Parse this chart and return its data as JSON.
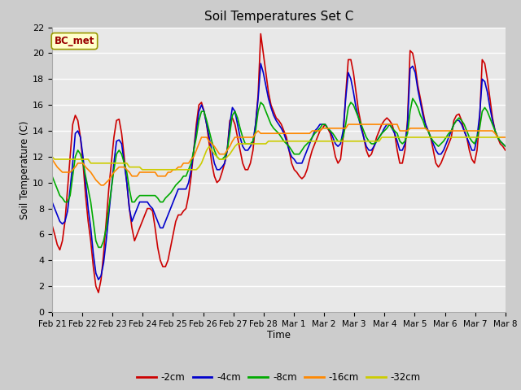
{
  "title": "Soil Temperatures Set C",
  "xlabel": "Time",
  "ylabel": "Soil Temperature (C)",
  "annotation": "BC_met",
  "legend_labels": [
    "-2cm",
    "-4cm",
    "-8cm",
    "-16cm",
    "-32cm"
  ],
  "legend_colors": [
    "#cc0000",
    "#0000cc",
    "#00aa00",
    "#ff8800",
    "#cccc00"
  ],
  "ylim": [
    0,
    22
  ],
  "x_labels": [
    "Feb 21",
    "Feb 22",
    "Feb 23",
    "Feb 24",
    "Feb 25",
    "Feb 26",
    "Feb 27",
    "Feb 28",
    "Mar 1",
    "Mar 2",
    "Mar 3",
    "Mar 4",
    "Mar 5",
    "Mar 6",
    "Mar 7",
    "Mar 8"
  ],
  "series_2cm": [
    6.7,
    6.0,
    5.2,
    4.8,
    5.5,
    7.0,
    9.5,
    12.0,
    14.5,
    15.2,
    14.8,
    13.5,
    11.5,
    9.0,
    7.0,
    5.5,
    3.5,
    2.0,
    1.5,
    2.5,
    4.5,
    7.0,
    9.5,
    11.5,
    13.5,
    14.8,
    14.9,
    13.8,
    12.0,
    10.0,
    8.0,
    6.5,
    5.5,
    6.0,
    6.5,
    7.0,
    7.5,
    8.0,
    8.0,
    7.8,
    6.5,
    5.0,
    4.0,
    3.5,
    3.5,
    4.0,
    5.0,
    6.0,
    7.0,
    7.5,
    7.5,
    7.8,
    8.0,
    9.0,
    10.5,
    12.5,
    14.5,
    16.0,
    16.2,
    15.5,
    14.5,
    13.0,
    11.5,
    10.5,
    10.0,
    10.2,
    10.8,
    11.5,
    12.5,
    14.8,
    15.0,
    14.5,
    13.5,
    12.5,
    11.5,
    11.0,
    11.0,
    11.5,
    12.5,
    14.5,
    16.8,
    21.5,
    20.0,
    18.5,
    17.0,
    16.0,
    15.5,
    15.0,
    14.8,
    14.5,
    14.0,
    13.5,
    12.5,
    11.5,
    11.0,
    10.8,
    10.5,
    10.3,
    10.5,
    11.0,
    11.8,
    12.5,
    13.0,
    13.5,
    14.0,
    14.2,
    14.5,
    14.2,
    13.8,
    13.0,
    12.0,
    11.5,
    11.8,
    13.5,
    16.8,
    19.5,
    19.5,
    18.5,
    17.0,
    15.5,
    14.5,
    13.5,
    12.5,
    12.0,
    12.2,
    12.8,
    13.5,
    14.0,
    14.5,
    14.8,
    15.0,
    14.8,
    14.5,
    13.8,
    12.5,
    11.5,
    11.5,
    12.5,
    14.8,
    20.2,
    20.0,
    19.0,
    17.5,
    16.5,
    15.5,
    14.5,
    14.0,
    13.5,
    12.5,
    11.5,
    11.2,
    11.5,
    12.0,
    12.5,
    13.0,
    13.5,
    14.8,
    15.2,
    15.3,
    14.8,
    14.0,
    13.5,
    12.5,
    11.8,
    11.5,
    12.5,
    14.8,
    19.5,
    19.2,
    18.0,
    16.5,
    15.0,
    14.0,
    13.5,
    13.0,
    12.8,
    12.5
  ],
  "series_4cm": [
    8.5,
    8.0,
    7.5,
    7.0,
    6.8,
    7.0,
    7.8,
    9.5,
    11.5,
    13.8,
    14.0,
    13.5,
    12.0,
    10.0,
    8.0,
    6.5,
    4.5,
    3.0,
    2.5,
    2.8,
    3.8,
    5.5,
    7.5,
    9.5,
    11.5,
    13.2,
    13.3,
    13.0,
    11.5,
    10.0,
    8.0,
    7.0,
    7.5,
    8.0,
    8.5,
    8.5,
    8.5,
    8.5,
    8.2,
    8.0,
    7.5,
    7.0,
    6.5,
    6.5,
    7.0,
    7.5,
    8.0,
    8.5,
    9.0,
    9.5,
    9.5,
    9.5,
    9.5,
    10.0,
    11.0,
    12.5,
    14.0,
    15.5,
    16.0,
    15.5,
    14.5,
    13.5,
    12.5,
    11.5,
    11.0,
    11.0,
    11.2,
    11.5,
    12.5,
    14.5,
    15.8,
    15.5,
    14.5,
    13.5,
    12.8,
    12.5,
    12.5,
    12.8,
    13.2,
    14.5,
    16.5,
    19.2,
    18.5,
    17.5,
    16.5,
    15.8,
    15.2,
    14.8,
    14.5,
    14.2,
    13.8,
    13.2,
    12.5,
    12.0,
    11.8,
    11.5,
    11.5,
    11.5,
    12.0,
    12.5,
    13.0,
    13.5,
    14.0,
    14.2,
    14.5,
    14.5,
    14.5,
    14.2,
    14.0,
    13.5,
    13.0,
    12.8,
    13.0,
    14.0,
    16.5,
    18.5,
    18.0,
    17.0,
    15.8,
    15.0,
    14.2,
    13.5,
    12.8,
    12.5,
    12.5,
    12.8,
    13.2,
    13.5,
    13.8,
    14.2,
    14.5,
    14.5,
    14.2,
    13.8,
    13.2,
    12.5,
    12.5,
    13.0,
    14.5,
    18.8,
    19.0,
    18.5,
    17.2,
    16.2,
    15.2,
    14.5,
    14.0,
    13.5,
    13.0,
    12.5,
    12.2,
    12.2,
    12.5,
    13.0,
    13.5,
    14.0,
    14.5,
    14.8,
    14.8,
    14.5,
    14.0,
    13.5,
    13.0,
    12.5,
    12.5,
    13.5,
    15.2,
    18.0,
    17.8,
    17.0,
    15.8,
    14.8,
    14.0,
    13.5,
    13.2,
    13.0,
    12.8
  ],
  "series_8cm": [
    10.5,
    10.0,
    9.5,
    9.0,
    8.8,
    8.5,
    8.5,
    9.0,
    10.5,
    12.0,
    12.5,
    12.2,
    11.5,
    10.5,
    9.5,
    8.5,
    7.0,
    5.5,
    5.0,
    5.0,
    5.5,
    6.5,
    8.0,
    9.5,
    11.0,
    12.2,
    12.5,
    12.2,
    11.5,
    10.8,
    9.5,
    8.5,
    8.5,
    8.8,
    9.0,
    9.0,
    9.0,
    9.0,
    9.0,
    9.0,
    9.0,
    8.8,
    8.5,
    8.5,
    8.8,
    9.0,
    9.2,
    9.5,
    9.8,
    10.0,
    10.2,
    10.5,
    10.5,
    11.0,
    11.5,
    12.5,
    13.5,
    14.8,
    15.5,
    15.5,
    14.8,
    14.0,
    13.2,
    12.5,
    12.0,
    11.8,
    11.8,
    12.0,
    12.5,
    13.8,
    15.2,
    15.5,
    15.0,
    14.2,
    13.5,
    13.0,
    13.0,
    13.0,
    13.2,
    14.0,
    15.5,
    16.2,
    16.0,
    15.5,
    15.0,
    14.5,
    14.2,
    14.0,
    13.8,
    13.5,
    13.2,
    13.0,
    12.8,
    12.5,
    12.2,
    12.2,
    12.2,
    12.5,
    12.8,
    13.0,
    13.2,
    13.5,
    13.8,
    14.0,
    14.2,
    14.5,
    14.5,
    14.2,
    14.0,
    13.8,
    13.5,
    13.2,
    13.2,
    13.5,
    14.5,
    15.8,
    16.2,
    16.0,
    15.5,
    15.0,
    14.5,
    14.0,
    13.5,
    13.2,
    13.0,
    13.0,
    13.2,
    13.5,
    13.8,
    14.0,
    14.2,
    14.5,
    14.2,
    14.0,
    13.8,
    13.2,
    13.0,
    13.2,
    13.8,
    15.5,
    16.5,
    16.2,
    15.8,
    15.2,
    14.8,
    14.2,
    14.0,
    13.5,
    13.2,
    13.0,
    12.8,
    13.0,
    13.2,
    13.5,
    13.8,
    14.0,
    14.5,
    14.8,
    15.0,
    14.8,
    14.5,
    14.0,
    13.5,
    13.2,
    13.0,
    13.5,
    14.2,
    15.5,
    15.8,
    15.5,
    15.0,
    14.5,
    14.0,
    13.5,
    13.2,
    13.0,
    12.8
  ],
  "series_16cm": [
    11.8,
    11.5,
    11.2,
    11.0,
    10.8,
    10.8,
    10.8,
    10.8,
    11.0,
    11.2,
    11.5,
    11.5,
    11.5,
    11.2,
    11.0,
    10.8,
    10.5,
    10.2,
    10.0,
    9.8,
    9.8,
    10.0,
    10.2,
    10.5,
    10.8,
    11.0,
    11.2,
    11.2,
    11.2,
    11.0,
    10.8,
    10.5,
    10.5,
    10.5,
    10.8,
    10.8,
    10.8,
    10.8,
    10.8,
    10.8,
    10.8,
    10.5,
    10.5,
    10.5,
    10.5,
    10.8,
    10.8,
    11.0,
    11.0,
    11.2,
    11.2,
    11.5,
    11.5,
    11.5,
    11.8,
    12.0,
    12.5,
    13.0,
    13.5,
    13.5,
    13.5,
    13.2,
    13.0,
    12.8,
    12.5,
    12.2,
    12.2,
    12.2,
    12.5,
    12.8,
    13.2,
    13.5,
    13.5,
    13.5,
    13.5,
    13.5,
    13.5,
    13.5,
    13.5,
    13.8,
    14.0,
    13.8,
    13.8,
    13.8,
    13.8,
    13.8,
    13.8,
    13.8,
    13.8,
    13.8,
    13.8,
    13.8,
    13.8,
    13.8,
    13.8,
    13.8,
    13.8,
    13.8,
    13.8,
    13.8,
    13.8,
    14.0,
    14.0,
    14.0,
    14.0,
    14.2,
    14.2,
    14.2,
    14.2,
    14.2,
    14.2,
    14.2,
    14.2,
    14.2,
    14.2,
    14.5,
    14.5,
    14.5,
    14.5,
    14.5,
    14.5,
    14.5,
    14.5,
    14.5,
    14.5,
    14.5,
    14.5,
    14.5,
    14.5,
    14.5,
    14.5,
    14.5,
    14.5,
    14.5,
    14.5,
    14.0,
    14.0,
    14.0,
    14.0,
    14.2,
    14.2,
    14.2,
    14.2,
    14.2,
    14.2,
    14.2,
    14.0,
    14.0,
    14.0,
    14.0,
    14.0,
    14.0,
    14.0,
    14.0,
    14.0,
    14.0,
    14.0,
    14.0,
    14.0,
    14.0,
    14.0,
    14.0,
    14.0,
    14.0,
    14.0,
    14.0,
    14.0,
    14.0,
    14.0,
    14.0,
    14.0,
    14.0,
    13.8,
    13.5,
    13.5,
    13.5,
    13.5
  ],
  "series_32cm": [
    12.0,
    11.8,
    11.8,
    11.8,
    11.8,
    11.8,
    11.8,
    11.8,
    11.8,
    11.8,
    11.8,
    11.8,
    11.8,
    11.8,
    11.8,
    11.5,
    11.5,
    11.5,
    11.5,
    11.5,
    11.5,
    11.5,
    11.5,
    11.5,
    11.5,
    11.5,
    11.5,
    11.5,
    11.5,
    11.5,
    11.2,
    11.2,
    11.2,
    11.2,
    11.2,
    11.0,
    11.0,
    11.0,
    11.0,
    11.0,
    11.0,
    11.0,
    11.0,
    11.0,
    11.0,
    11.0,
    11.0,
    11.0,
    11.0,
    11.0,
    11.0,
    11.0,
    11.0,
    11.0,
    11.0,
    11.0,
    11.0,
    11.2,
    11.5,
    12.0,
    12.5,
    12.8,
    12.5,
    12.2,
    12.0,
    11.8,
    11.8,
    11.8,
    12.0,
    12.2,
    12.5,
    12.8,
    13.0,
    13.0,
    13.0,
    13.0,
    13.0,
    13.0,
    13.0,
    13.0,
    13.0,
    13.0,
    13.0,
    13.0,
    13.2,
    13.2,
    13.2,
    13.2,
    13.2,
    13.2,
    13.2,
    13.2,
    13.2,
    13.2,
    13.2,
    13.2,
    13.2,
    13.2,
    13.2,
    13.2,
    13.2,
    13.2,
    13.2,
    13.2,
    13.2,
    13.2,
    13.2,
    13.2,
    13.2,
    13.2,
    13.2,
    13.2,
    13.2,
    13.2,
    13.2,
    13.2,
    13.2,
    13.2,
    13.2,
    13.2,
    13.2,
    13.2,
    13.2,
    13.2,
    13.2,
    13.2,
    13.2,
    13.2,
    13.5,
    13.5,
    13.5,
    13.5,
    13.5,
    13.5,
    13.5,
    13.5,
    13.5,
    13.5,
    13.5,
    13.5,
    13.5,
    13.5,
    13.5,
    13.5,
    13.5,
    13.5,
    13.5,
    13.5,
    13.5,
    13.5,
    13.5,
    13.5,
    13.5,
    13.5,
    13.5,
    13.5,
    13.5,
    13.5,
    13.5,
    13.5,
    13.5,
    13.5,
    13.5,
    13.5,
    13.5,
    13.5,
    13.5,
    13.5,
    13.5,
    13.5,
    13.5,
    13.5,
    13.5,
    13.5,
    13.5
  ]
}
